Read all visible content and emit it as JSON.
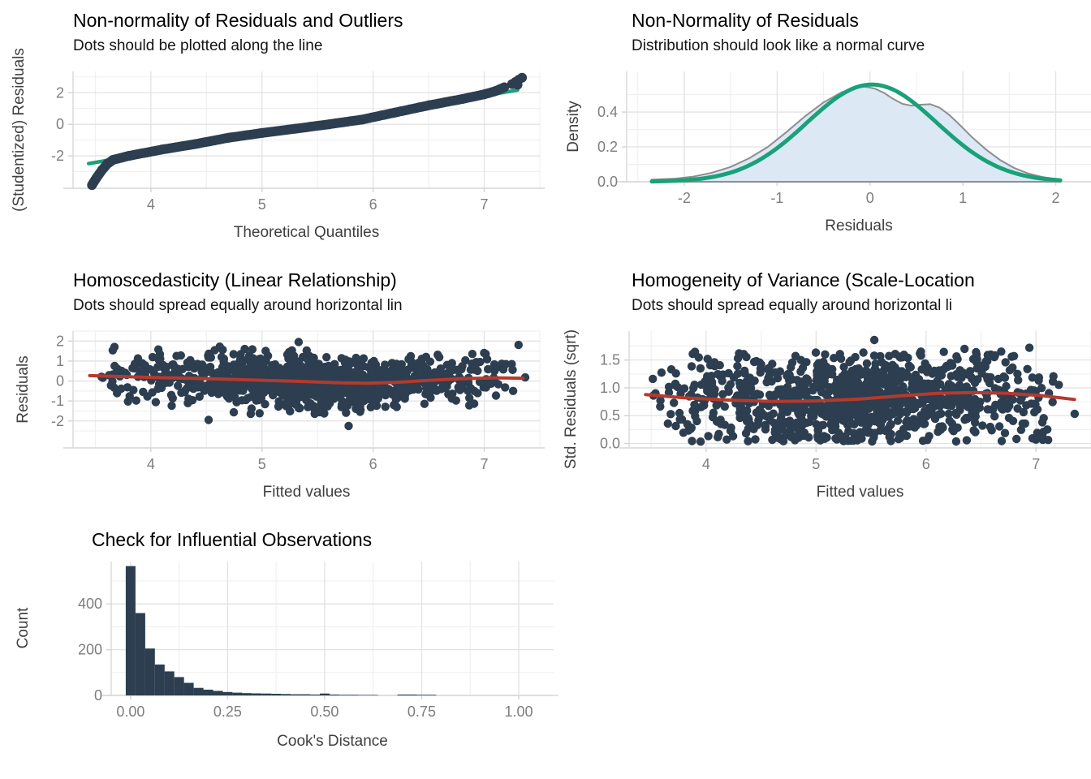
{
  "figure": {
    "background": "#ffffff"
  },
  "colors": {
    "dots": "#2c3e50",
    "trend_red": "#b43a2e",
    "ref_green": "#1aa179",
    "density_fill": "#dce9f5",
    "density_stroke": "#8e8e8e",
    "grid_major": "#e2e2e2",
    "grid_minor": "#f0f0f0",
    "axis_line": "#d6d6d6",
    "tick_label": "#7e7e7e",
    "axis_title": "#3f3f3f",
    "title": "#000000",
    "hist_bar": "#2c3e50"
  },
  "chart_data": [
    {
      "id": "qq",
      "type": "scatter",
      "title": "Non-normality of Residuals and Outliers",
      "subtitle": "Dots should be plotted along the line",
      "xlabel": "Theoretical Quantiles",
      "ylabel": "(Studentized) Residuals",
      "xlim": [
        3.3,
        7.5
      ],
      "ylim": [
        -4.05,
        3.35
      ],
      "xticks": {
        "values": [
          4,
          5,
          6,
          7
        ],
        "labels": [
          "4",
          "5",
          "6",
          "7"
        ]
      },
      "yticks": {
        "values": [
          -2,
          0,
          2
        ],
        "labels": [
          "-2",
          "0",
          "2"
        ]
      },
      "grid": true,
      "legend": "none",
      "ref_line": {
        "x": [
          3.44,
          7.3
        ],
        "y": [
          -2.49,
          2.17
        ]
      },
      "dot_curve": [
        [
          3.47,
          -3.85
        ],
        [
          3.51,
          -3.4
        ],
        [
          3.56,
          -2.9
        ],
        [
          3.61,
          -2.5
        ],
        [
          3.66,
          -2.25
        ],
        [
          3.8,
          -2.0
        ],
        [
          4.1,
          -1.6
        ],
        [
          4.4,
          -1.25
        ],
        [
          4.7,
          -0.85
        ],
        [
          5.0,
          -0.55
        ],
        [
          5.3,
          -0.28
        ],
        [
          5.6,
          0.0
        ],
        [
          5.9,
          0.3
        ],
        [
          6.2,
          0.75
        ],
        [
          6.5,
          1.2
        ],
        [
          6.8,
          1.6
        ],
        [
          7.0,
          1.9
        ],
        [
          7.1,
          2.1
        ],
        [
          7.18,
          2.35
        ]
      ],
      "outlier_dots": [
        [
          7.25,
          2.55
        ],
        [
          7.28,
          2.68
        ],
        [
          7.31,
          2.82
        ],
        [
          7.34,
          2.95
        ],
        [
          7.3,
          2.5
        ]
      ],
      "n_dots": 250
    },
    {
      "id": "density",
      "type": "area",
      "title": "Non-Normality of Residuals",
      "subtitle": "Distribution should look like a normal curve",
      "xlabel": "Residuals",
      "ylabel": "Density",
      "xlim": [
        -2.62,
        2.38
      ],
      "ylim": [
        0,
        0.633
      ],
      "xticks": {
        "values": [
          -2,
          -1,
          0,
          1,
          2
        ],
        "labels": [
          "-2",
          "-1",
          "0",
          "1",
          "2"
        ]
      },
      "yticks": {
        "values": [
          0.0,
          0.2,
          0.4
        ],
        "labels": [
          "0.0",
          "0.2",
          "0.4"
        ]
      },
      "grid": true,
      "legend": "none",
      "density_curve": [
        [
          -2.35,
          0.012
        ],
        [
          -2.1,
          0.018
        ],
        [
          -1.9,
          0.03
        ],
        [
          -1.7,
          0.052
        ],
        [
          -1.5,
          0.085
        ],
        [
          -1.3,
          0.135
        ],
        [
          -1.1,
          0.2
        ],
        [
          -0.9,
          0.285
        ],
        [
          -0.7,
          0.375
        ],
        [
          -0.5,
          0.455
        ],
        [
          -0.3,
          0.515
        ],
        [
          -0.15,
          0.54
        ],
        [
          -0.05,
          0.545
        ],
        [
          0.05,
          0.535
        ],
        [
          0.15,
          0.51
        ],
        [
          0.25,
          0.475
        ],
        [
          0.35,
          0.447
        ],
        [
          0.45,
          0.436
        ],
        [
          0.55,
          0.442
        ],
        [
          0.65,
          0.445
        ],
        [
          0.75,
          0.425
        ],
        [
          0.85,
          0.385
        ],
        [
          0.95,
          0.335
        ],
        [
          1.1,
          0.255
        ],
        [
          1.25,
          0.185
        ],
        [
          1.4,
          0.125
        ],
        [
          1.55,
          0.08
        ],
        [
          1.7,
          0.048
        ],
        [
          1.85,
          0.028
        ],
        [
          2.0,
          0.016
        ],
        [
          2.05,
          0.014
        ]
      ],
      "normal_curve": {
        "mean": 0.02,
        "sd": 0.7,
        "peak": 0.558,
        "x_min": -2.35,
        "x_max": 2.05
      }
    },
    {
      "id": "homo",
      "type": "scatter",
      "title": "Homoscedasticity (Linear Relationship)",
      "subtitle": "Dots should spread equally around horizontal lin",
      "xlabel": "Fitted values",
      "ylabel": "Residuals",
      "xlim": [
        3.3,
        7.5
      ],
      "ylim": [
        -3.35,
        2.5
      ],
      "xticks": {
        "values": [
          4,
          5,
          6,
          7
        ],
        "labels": [
          "4",
          "5",
          "6",
          "7"
        ]
      },
      "yticks": {
        "values": [
          -2,
          -1,
          0,
          1,
          2
        ],
        "labels": [
          "-2",
          "-1",
          "0",
          "1",
          "2"
        ]
      },
      "grid": true,
      "legend": "none",
      "trend": [
        [
          3.45,
          0.27
        ],
        [
          4.0,
          0.18
        ],
        [
          4.5,
          0.12
        ],
        [
          5.0,
          0.04
        ],
        [
          5.4,
          -0.03
        ],
        [
          5.7,
          -0.09
        ],
        [
          5.95,
          -0.11
        ],
        [
          6.2,
          -0.07
        ],
        [
          6.5,
          0.03
        ],
        [
          6.8,
          0.12
        ],
        [
          7.1,
          0.16
        ],
        [
          7.35,
          0.14
        ]
      ],
      "cloud": {
        "n": 1050,
        "seed": 42,
        "x_min": 3.45,
        "x_max": 7.38,
        "y_sd": 0.62,
        "y_min": -2.32,
        "y_max": 2.02
      },
      "outlier_dots": [
        [
          5.78,
          -2.25
        ],
        [
          4.52,
          -1.95
        ],
        [
          4.62,
          1.72
        ],
        [
          5.33,
          1.95
        ]
      ]
    },
    {
      "id": "scale",
      "type": "scatter",
      "title": "Homogeneity of Variance (Scale-Location",
      "subtitle": "Dots should spread equally around horizontal li",
      "xlabel": "Fitted values",
      "ylabel": "Std. Residuals (sqrt)",
      "xlim": [
        3.3,
        7.5
      ],
      "ylim": [
        -0.08,
        2.02
      ],
      "xticks": {
        "values": [
          4,
          5,
          6,
          7
        ],
        "labels": [
          "4",
          "5",
          "6",
          "7"
        ]
      },
      "yticks": {
        "values": [
          0.0,
          0.5,
          1.0,
          1.5
        ],
        "labels": [
          "0.0",
          "0.5",
          "1.0",
          "1.5"
        ]
      },
      "grid": true,
      "legend": "none",
      "trend": [
        [
          3.45,
          0.88
        ],
        [
          3.8,
          0.82
        ],
        [
          4.2,
          0.78
        ],
        [
          4.6,
          0.755
        ],
        [
          5.0,
          0.765
        ],
        [
          5.4,
          0.8
        ],
        [
          5.8,
          0.86
        ],
        [
          6.1,
          0.9
        ],
        [
          6.45,
          0.915
        ],
        [
          6.75,
          0.9
        ],
        [
          7.05,
          0.86
        ],
        [
          7.35,
          0.79
        ]
      ],
      "cloud": {
        "n": 1050,
        "seed": 7,
        "x_min": 3.45,
        "x_max": 7.38,
        "y_sd": 0.4,
        "y_min": 0.03,
        "y_max": 1.66
      },
      "outlier_dots": [
        [
          5.53,
          1.86
        ],
        [
          6.94,
          1.72
        ],
        [
          4.3,
          1.62
        ],
        [
          6.35,
          1.7
        ]
      ]
    },
    {
      "id": "infl",
      "type": "bar",
      "title": "Check for Influential Observations",
      "subtitle": "",
      "xlabel": "Cook's Distance",
      "ylabel": "Count",
      "xlim": [
        -0.05,
        1.09
      ],
      "ylim": [
        0,
        585
      ],
      "xticks": {
        "values": [
          0,
          0.25,
          0.5,
          0.75,
          1.0
        ],
        "labels": [
          "0.00",
          "0.25",
          "0.50",
          "0.75",
          "1.00"
        ]
      },
      "yticks": {
        "values": [
          0,
          200,
          400
        ],
        "labels": [
          "0",
          "200",
          "400"
        ]
      },
      "grid": true,
      "legend": "none",
      "bins": {
        "start": -0.0125,
        "width": 0.025,
        "counts": [
          565,
          360,
          205,
          135,
          105,
          80,
          55,
          33,
          25,
          20,
          15,
          12,
          10,
          9,
          8,
          7,
          6,
          5,
          5,
          4,
          8,
          4,
          3,
          3,
          2,
          2,
          0,
          0,
          4,
          4,
          3,
          3
        ]
      }
    }
  ]
}
